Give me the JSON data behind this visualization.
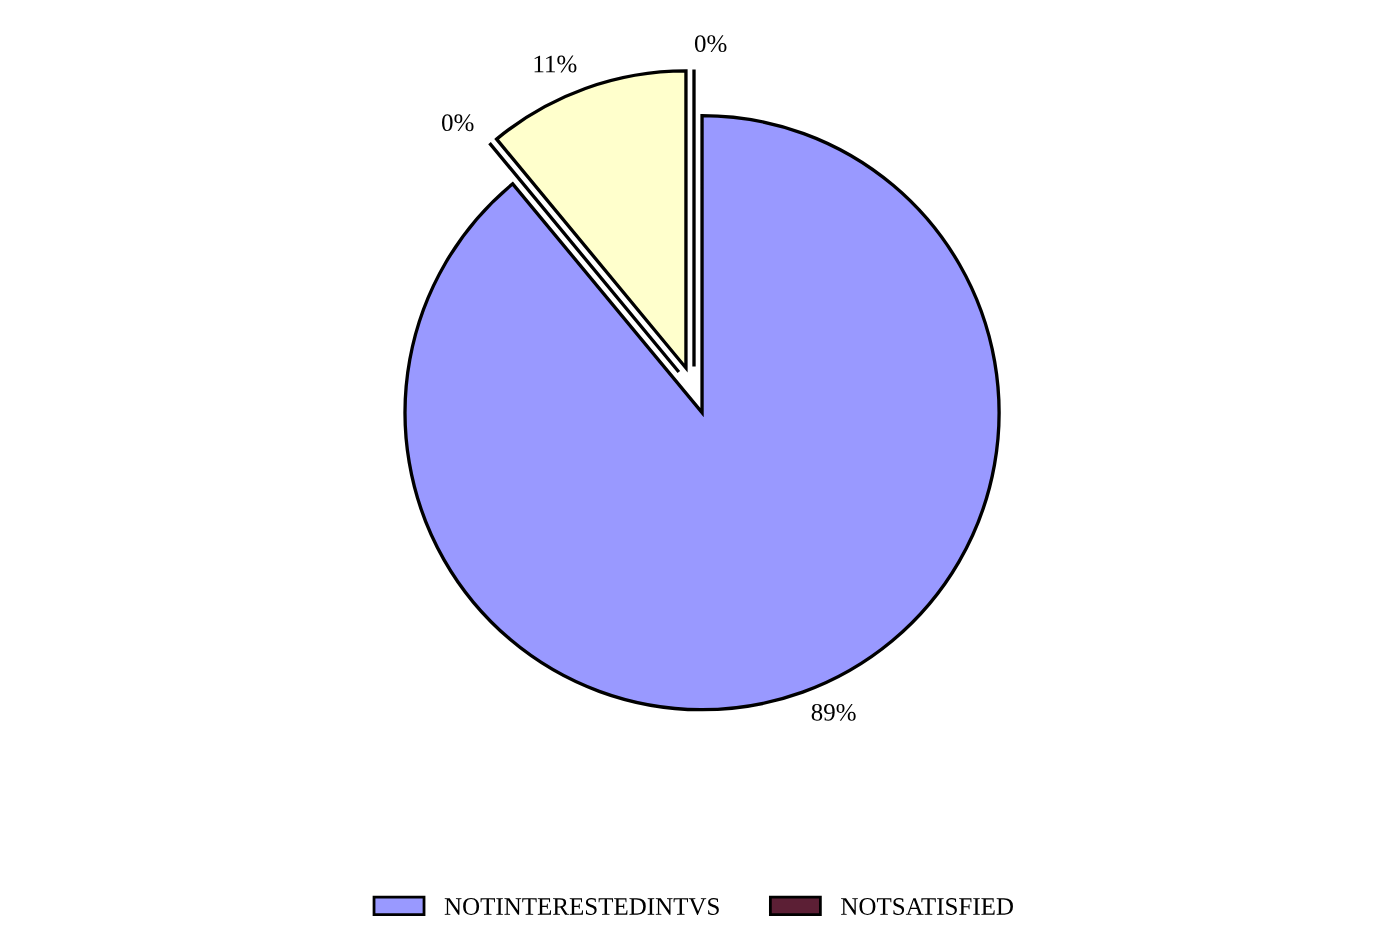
{
  "chart_data": {
    "type": "pie",
    "categories": [
      "NOTINTERESTEDINTVS",
      "NOTSATISFIED",
      null,
      null
    ],
    "values": [
      89,
      0,
      11,
      0
    ],
    "value_labels": [
      "89%",
      "0%",
      "11%",
      "0%"
    ],
    "colors": [
      "#9999ff",
      "#5c1f35",
      "#ffffcc",
      "#ffffff"
    ],
    "legend": "bottom"
  }
}
